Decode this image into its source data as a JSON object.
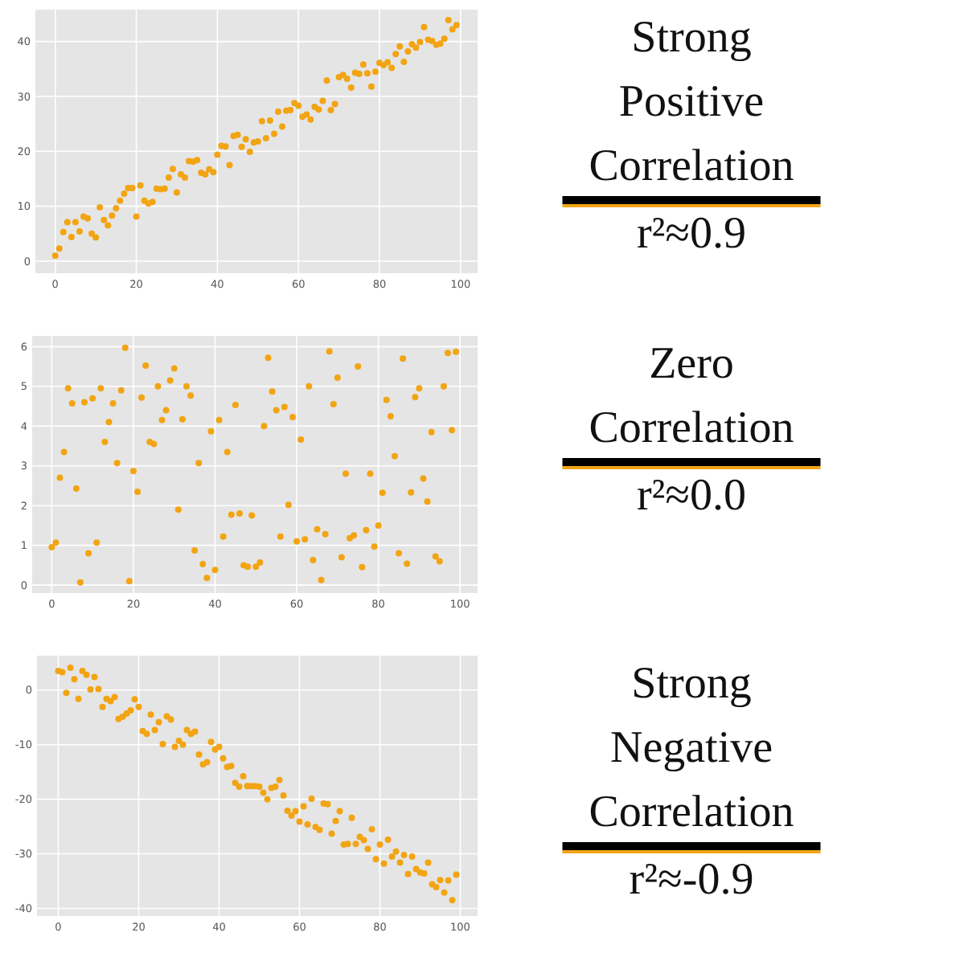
{
  "chart_data": [
    {
      "type": "scatter",
      "marker": "circle",
      "grid": true,
      "xlim": [
        -4.9,
        104.2
      ],
      "ylim": [
        -2.2,
        45.8
      ],
      "xticks": [
        0,
        20,
        40,
        60,
        80,
        100
      ],
      "yticks": [
        0,
        10,
        20,
        30,
        40
      ],
      "series": [
        {
          "color": "#f2a413",
          "x": [
            0,
            1,
            2,
            3,
            4,
            5,
            6,
            7,
            8,
            9,
            10,
            11,
            12,
            13,
            14,
            15,
            16,
            17,
            18,
            19,
            20,
            21,
            22,
            23,
            24,
            25,
            26,
            27,
            28,
            29,
            30,
            31,
            32,
            33,
            34,
            35,
            36,
            37,
            38,
            39,
            40,
            41,
            42,
            43,
            44,
            45,
            46,
            47,
            48,
            49,
            50,
            51,
            52,
            53,
            54,
            55,
            56,
            57,
            58,
            59,
            60,
            61,
            62,
            63,
            64,
            65,
            66,
            67,
            68,
            69,
            70,
            71,
            72,
            73,
            74,
            75,
            76,
            77,
            78,
            79,
            80,
            81,
            82,
            83,
            84,
            85,
            86,
            87,
            88,
            89,
            90,
            91,
            92,
            93,
            94,
            95,
            96,
            97,
            98,
            99
          ],
          "values": [
            1,
            2.3,
            5.3,
            7.1,
            4.4,
            7.1,
            5.4,
            8.1,
            7.8,
            5,
            4.3,
            9.8,
            7.5,
            6.5,
            8.3,
            9.6,
            11,
            12.3,
            13.3,
            13.3,
            8.1,
            13.8,
            11,
            10.5,
            10.8,
            13.2,
            13.1,
            13.2,
            15.2,
            16.8,
            12.5,
            15.8,
            15.2,
            18.2,
            18.1,
            18.4,
            16.1,
            15.8,
            16.7,
            16.2,
            19.4,
            21,
            20.9,
            17.5,
            22.8,
            23,
            20.8,
            22.2,
            19.9,
            21.6,
            21.8,
            25.5,
            22.4,
            25.6,
            23.2,
            27.2,
            24.5,
            27.4,
            27.5,
            28.8,
            28.3,
            26.3,
            26.7,
            25.8,
            28.1,
            27.6,
            29.2,
            32.9,
            27.5,
            28.6,
            33.5,
            33.9,
            33.2,
            31.6,
            34.3,
            34.1,
            35.8,
            34.2,
            31.8,
            34.5,
            36.1,
            35.7,
            36.2,
            35.2,
            37.7,
            39.1,
            36.3,
            38.2,
            39.5,
            38.9,
            39.9,
            42.6,
            40.3,
            40.1,
            39.4,
            39.6,
            40.5,
            43.9,
            42.2,
            43
          ]
        }
      ]
    },
    {
      "type": "other",
      "title": "Strong Positive Correlation",
      "subtitle": "r²≈0.9"
    },
    {
      "type": "scatter",
      "marker": "circle",
      "grid": true,
      "xlim": [
        -4.8,
        104.3
      ],
      "ylim": [
        -0.2,
        6.27
      ],
      "xticks": [
        0,
        20,
        40,
        60,
        80,
        100
      ],
      "yticks": [
        0,
        1,
        2,
        3,
        4,
        5,
        6
      ],
      "series": [
        {
          "color": "#f2a413",
          "x": [
            0,
            1,
            2,
            3,
            4,
            5,
            6,
            7,
            8,
            9,
            10,
            11,
            12,
            13,
            14,
            15,
            16,
            17,
            18,
            19,
            20,
            21,
            22,
            23,
            24,
            25,
            26,
            27,
            28,
            29,
            30,
            31,
            32,
            33,
            34,
            35,
            36,
            37,
            38,
            39,
            40,
            41,
            42,
            43,
            44,
            45,
            46,
            47,
            48,
            49,
            50,
            51,
            52,
            53,
            54,
            55,
            56,
            57,
            58,
            59,
            60,
            61,
            62,
            63,
            64,
            65,
            66,
            67,
            68,
            69,
            70,
            71,
            72,
            73,
            74,
            75,
            76,
            77,
            78,
            79,
            80,
            81,
            82,
            83,
            84,
            85,
            86,
            87,
            88,
            89,
            90,
            91,
            92,
            93,
            94,
            95,
            96,
            97,
            98,
            99
          ],
          "values": [
            0.95,
            1.07,
            2.7,
            3.35,
            4.95,
            4.57,
            2.43,
            0.07,
            4.6,
            0.8,
            4.7,
            1.07,
            4.95,
            3.6,
            4.1,
            4.57,
            3.07,
            4.9,
            5.97,
            0.1,
            2.87,
            2.35,
            4.72,
            5.52,
            3.6,
            3.55,
            5,
            4.15,
            4.4,
            5.15,
            5.45,
            1.9,
            4.17,
            5,
            4.77,
            0.87,
            3.07,
            0.53,
            0.18,
            3.87,
            0.38,
            4.15,
            1.22,
            3.35,
            1.77,
            4.53,
            1.8,
            0.5,
            0.46,
            1.75,
            0.46,
            0.57,
            4,
            5.72,
            4.87,
            4.4,
            1.22,
            4.48,
            2.02,
            4.23,
            1.1,
            3.66,
            1.15,
            5,
            0.63,
            1.4,
            0.13,
            1.28,
            5.88,
            4.55,
            5.22,
            0.7,
            2.8,
            1.18,
            1.25,
            5.5,
            0.45,
            1.38,
            2.8,
            0.97,
            1.5,
            2.32,
            4.66,
            4.25,
            3.24,
            0.8,
            5.7,
            0.54,
            2.33,
            4.73,
            4.95,
            2.68,
            2.1,
            3.85,
            0.72,
            0.6,
            5,
            5.84,
            3.9,
            5.87
          ]
        }
      ]
    },
    {
      "type": "other",
      "title": "Zero Correlation",
      "subtitle": "r²≈0.0"
    },
    {
      "type": "scatter",
      "marker": "circle",
      "grid": true,
      "xlim": [
        -5.3,
        104.3
      ],
      "ylim": [
        -41.4,
        6.3
      ],
      "xticks": [
        0,
        20,
        40,
        60,
        80,
        100
      ],
      "yticks": [
        -40,
        -30,
        -20,
        -10,
        0
      ],
      "series": [
        {
          "color": "#f2a413",
          "x": [
            0,
            1,
            2,
            3,
            4,
            5,
            6,
            7,
            8,
            9,
            10,
            11,
            12,
            13,
            14,
            15,
            16,
            17,
            18,
            19,
            20,
            21,
            22,
            23,
            24,
            25,
            26,
            27,
            28,
            29,
            30,
            31,
            32,
            33,
            34,
            35,
            36,
            37,
            38,
            39,
            40,
            41,
            42,
            43,
            44,
            45,
            46,
            47,
            48,
            49,
            50,
            51,
            52,
            53,
            54,
            55,
            56,
            57,
            58,
            59,
            60,
            61,
            62,
            63,
            64,
            65,
            66,
            67,
            68,
            69,
            70,
            71,
            72,
            73,
            74,
            75,
            76,
            77,
            78,
            79,
            80,
            81,
            82,
            83,
            84,
            85,
            86,
            87,
            88,
            89,
            90,
            91,
            92,
            93,
            94,
            95,
            96,
            97,
            98,
            99
          ],
          "values": [
            3.5,
            3.3,
            -0.5,
            4.1,
            2,
            -1.6,
            3.5,
            2.8,
            0.1,
            2.4,
            0.2,
            -3.1,
            -1.6,
            -2,
            -1.3,
            -5.3,
            -4.9,
            -4.3,
            -3.7,
            -1.7,
            -3.1,
            -7.5,
            -8,
            -4.5,
            -7.3,
            -5.9,
            -9.9,
            -4.8,
            -5.4,
            -10.4,
            -9.3,
            -10,
            -7.3,
            -8,
            -7.6,
            -11.8,
            -13.6,
            -13.2,
            -9.5,
            -10.9,
            -10.4,
            -12.5,
            -14.1,
            -13.9,
            -17,
            -17.7,
            -15.8,
            -17.6,
            -17.6,
            -17.6,
            -17.7,
            -18.8,
            -20,
            -17.9,
            -17.7,
            -16.5,
            -19.3,
            -22.1,
            -23,
            -22.2,
            -24.1,
            -21.3,
            -24.6,
            -19.9,
            -25.1,
            -25.6,
            -20.8,
            -20.9,
            -26.3,
            -24,
            -22.2,
            -28.3,
            -28.2,
            -23.4,
            -28.2,
            -26.9,
            -27.5,
            -29.1,
            -25.5,
            -31,
            -28.3,
            -31.8,
            -27.4,
            -30.5,
            -29.6,
            -31.6,
            -30.2,
            -33.7,
            -30.5,
            -32.8,
            -33.4,
            -33.6,
            -31.6,
            -35.6,
            -36.1,
            -34.8,
            -37.1,
            -34.9,
            -38.5,
            -33.8
          ]
        }
      ]
    },
    {
      "type": "other",
      "title": "Strong Negative Correlation",
      "subtitle": "r²≈-0.9"
    }
  ]
}
